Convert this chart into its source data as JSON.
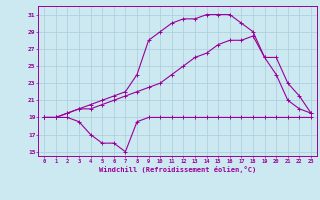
{
  "title": "",
  "xlabel": "Windchill (Refroidissement éolien,°C)",
  "background_color": "#cce8f0",
  "line_color": "#990099",
  "grid_color": "#aaccdd",
  "xlim": [
    -0.5,
    23.5
  ],
  "ylim": [
    14.5,
    32
  ],
  "xticks": [
    0,
    1,
    2,
    3,
    4,
    5,
    6,
    7,
    8,
    9,
    10,
    11,
    12,
    13,
    14,
    15,
    16,
    17,
    18,
    19,
    20,
    21,
    22,
    23
  ],
  "yticks": [
    15,
    17,
    19,
    21,
    23,
    25,
    27,
    29,
    31
  ],
  "line1_x": [
    0,
    1,
    2,
    3,
    4,
    5,
    6,
    7,
    8,
    9,
    10,
    11,
    12,
    13,
    14,
    15,
    16,
    17,
    18,
    19,
    20,
    21,
    22,
    23
  ],
  "line1_y": [
    19,
    19,
    19,
    18.5,
    17,
    16,
    16,
    15,
    18.5,
    19,
    19,
    19,
    19,
    19,
    19,
    19,
    19,
    19,
    19,
    19,
    19,
    19,
    19,
    19
  ],
  "line2_x": [
    0,
    1,
    2,
    3,
    4,
    5,
    6,
    7,
    8,
    9,
    10,
    11,
    12,
    13,
    14,
    15,
    16,
    17,
    18,
    19,
    20,
    21,
    22,
    23
  ],
  "line2_y": [
    19,
    19,
    19.5,
    20,
    20.5,
    21,
    21.5,
    22,
    24,
    28,
    29,
    30,
    30.5,
    30.5,
    31,
    31,
    31,
    30,
    29,
    26,
    24,
    21,
    20,
    19.5
  ],
  "line3_x": [
    0,
    1,
    2,
    3,
    4,
    5,
    6,
    7,
    8,
    9,
    10,
    11,
    12,
    13,
    14,
    15,
    16,
    17,
    18,
    19,
    20,
    21,
    22,
    23
  ],
  "line3_y": [
    19,
    19,
    19.5,
    20,
    20,
    20.5,
    21,
    21.5,
    22,
    22.5,
    23,
    24,
    25,
    26,
    26.5,
    27.5,
    28,
    28,
    28.5,
    26,
    26,
    23,
    21.5,
    19.5
  ]
}
